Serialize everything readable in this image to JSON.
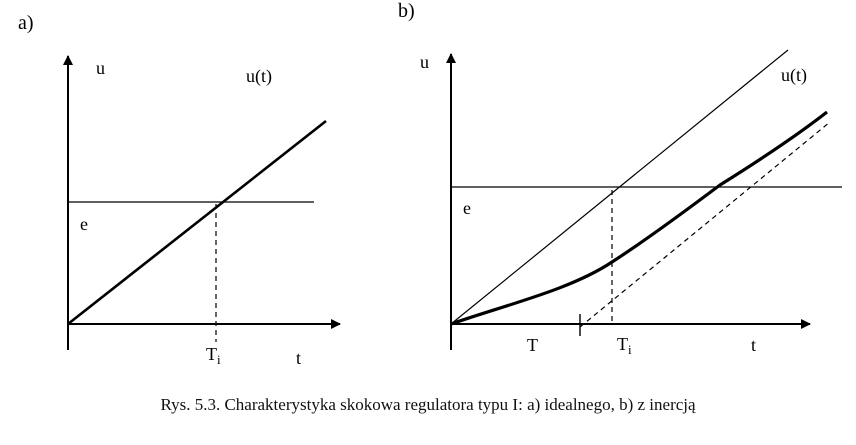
{
  "panel_a": {
    "label": "a)",
    "y_axis_label": "u",
    "x_axis_label": "t",
    "curve_label": "u(t)",
    "level_label": "e",
    "time_mark": {
      "main": "T",
      "sub": "i"
    }
  },
  "panel_b": {
    "label": "b)",
    "y_axis_label": "u",
    "x_axis_label": "t",
    "curve_label": "u(t)",
    "level_label": "e",
    "lag_label": "T",
    "time_mark": {
      "main": "T",
      "sub": "i"
    }
  },
  "caption": "Rys. 5.3. Charakterystyka skokowa regulatora typu I: a) idealnego, b) z inercją"
}
